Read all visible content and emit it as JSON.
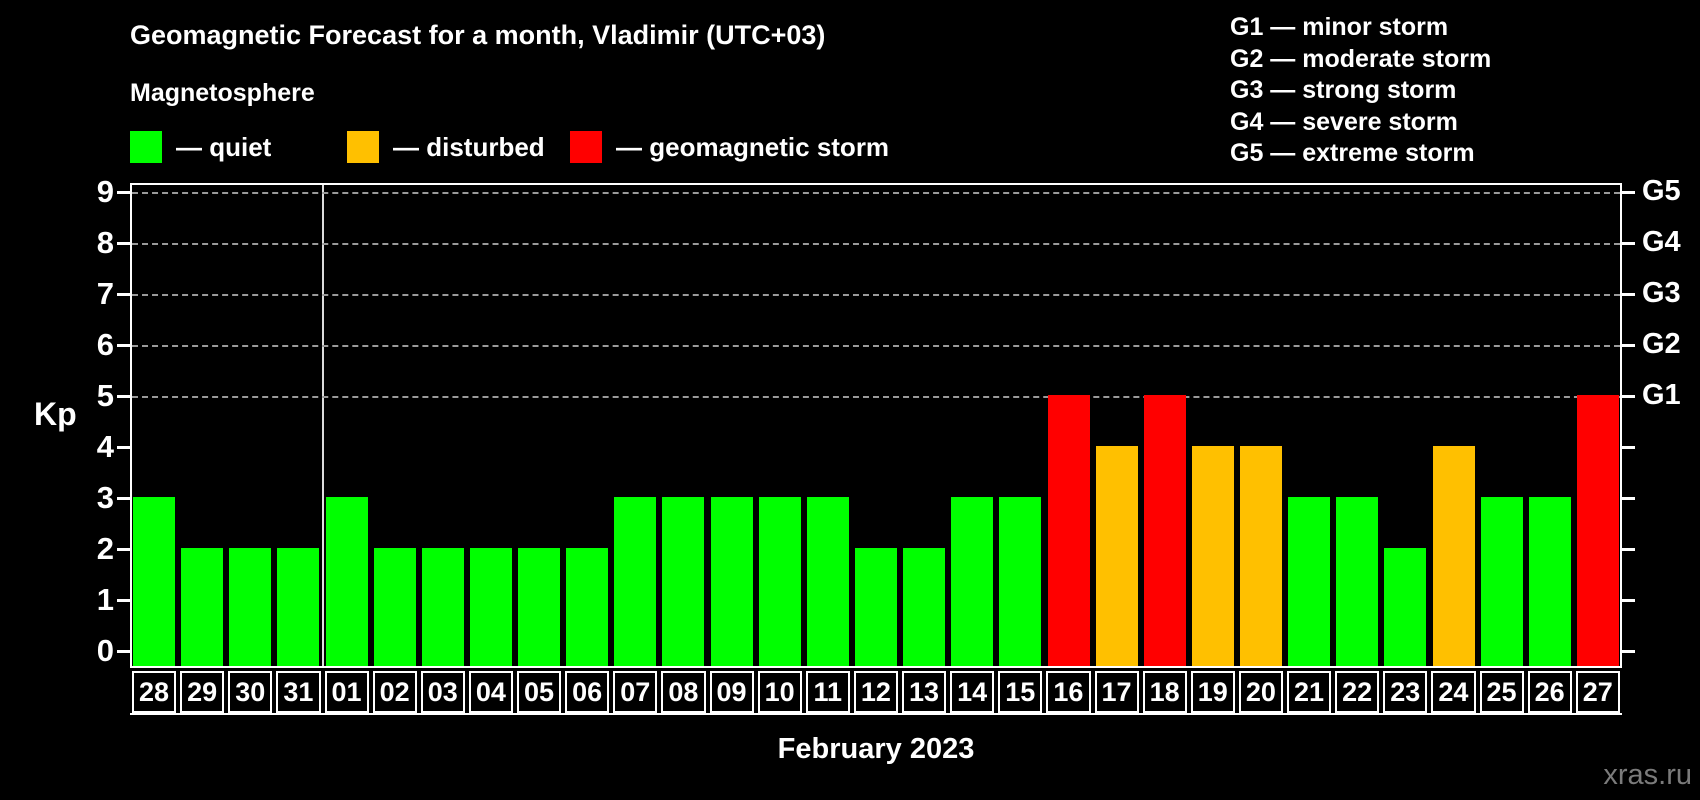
{
  "title": "Geomagnetic Forecast for a month, Vladimir (UTC+03)",
  "subtitle": "Magnetosphere",
  "legend": {
    "items": [
      {
        "label": "— quiet",
        "status": "quiet"
      },
      {
        "label": "— disturbed",
        "status": "disturbed"
      },
      {
        "label": "— geomagnetic storm",
        "status": "storm"
      }
    ]
  },
  "storm_scale_legend": [
    "G1 — minor storm",
    "G2 — moderate storm",
    "G3 — strong storm",
    "G4 — severe storm",
    "G5 — extreme storm"
  ],
  "watermark": "xras.ru",
  "colors": {
    "quiet": "#00ff00",
    "disturbed": "#ffc000",
    "storm": "#ff0000",
    "background": "#000000",
    "text": "#ffffff",
    "grid": "#9a9a9a",
    "watermark": "#7b7b7b"
  },
  "chart_data": {
    "type": "bar",
    "title": "Geomagnetic Forecast for a month, Vladimir (UTC+03)",
    "xlabel": "February 2023",
    "ylabel": "Kp",
    "ylim": [
      0,
      9
    ],
    "yticks": [
      0,
      1,
      2,
      3,
      4,
      5,
      6,
      7,
      8,
      9
    ],
    "gridlines_at": [
      5,
      6,
      7,
      8,
      9
    ],
    "grid": "dashed, only at storm levels G1–G5",
    "legend_position": "top",
    "month_separator_after_slot": 4,
    "right_axis": [
      {
        "kp": 5,
        "label": "G1"
      },
      {
        "kp": 6,
        "label": "G2"
      },
      {
        "kp": 7,
        "label": "G3"
      },
      {
        "kp": 8,
        "label": "G4"
      },
      {
        "kp": 9,
        "label": "G5"
      }
    ],
    "categories": [
      "28",
      "29",
      "30",
      "31",
      "01",
      "02",
      "03",
      "04",
      "05",
      "06",
      "07",
      "08",
      "09",
      "10",
      "11",
      "12",
      "13",
      "14",
      "15",
      "16",
      "17",
      "18",
      "19",
      "20",
      "21",
      "22",
      "23",
      "24",
      "25",
      "26",
      "27"
    ],
    "values": [
      3,
      2,
      2,
      2,
      3,
      2,
      2,
      2,
      2,
      2,
      3,
      3,
      3,
      3,
      3,
      2,
      2,
      3,
      3,
      5,
      4,
      5,
      4,
      4,
      3,
      3,
      2,
      4,
      3,
      3,
      5
    ],
    "bars": [
      {
        "day": "28",
        "kp": 3,
        "status": "quiet"
      },
      {
        "day": "29",
        "kp": 2,
        "status": "quiet"
      },
      {
        "day": "30",
        "kp": 2,
        "status": "quiet"
      },
      {
        "day": "31",
        "kp": 2,
        "status": "quiet"
      },
      {
        "day": "01",
        "kp": 3,
        "status": "quiet"
      },
      {
        "day": "02",
        "kp": 2,
        "status": "quiet"
      },
      {
        "day": "03",
        "kp": 2,
        "status": "quiet"
      },
      {
        "day": "04",
        "kp": 2,
        "status": "quiet"
      },
      {
        "day": "05",
        "kp": 2,
        "status": "quiet"
      },
      {
        "day": "06",
        "kp": 2,
        "status": "quiet"
      },
      {
        "day": "07",
        "kp": 3,
        "status": "quiet"
      },
      {
        "day": "08",
        "kp": 3,
        "status": "quiet"
      },
      {
        "day": "09",
        "kp": 3,
        "status": "quiet"
      },
      {
        "day": "10",
        "kp": 3,
        "status": "quiet"
      },
      {
        "day": "11",
        "kp": 3,
        "status": "quiet"
      },
      {
        "day": "12",
        "kp": 2,
        "status": "quiet"
      },
      {
        "day": "13",
        "kp": 2,
        "status": "quiet"
      },
      {
        "day": "14",
        "kp": 3,
        "status": "quiet"
      },
      {
        "day": "15",
        "kp": 3,
        "status": "quiet"
      },
      {
        "day": "16",
        "kp": 5,
        "status": "storm"
      },
      {
        "day": "17",
        "kp": 4,
        "status": "disturbed"
      },
      {
        "day": "18",
        "kp": 5,
        "status": "storm"
      },
      {
        "day": "19",
        "kp": 4,
        "status": "disturbed"
      },
      {
        "day": "20",
        "kp": 4,
        "status": "disturbed"
      },
      {
        "day": "21",
        "kp": 3,
        "status": "quiet"
      },
      {
        "day": "22",
        "kp": 3,
        "status": "quiet"
      },
      {
        "day": "23",
        "kp": 2,
        "status": "quiet"
      },
      {
        "day": "24",
        "kp": 4,
        "status": "disturbed"
      },
      {
        "day": "25",
        "kp": 3,
        "status": "quiet"
      },
      {
        "day": "26",
        "kp": 3,
        "status": "quiet"
      },
      {
        "day": "27",
        "kp": 5,
        "status": "storm"
      }
    ]
  }
}
